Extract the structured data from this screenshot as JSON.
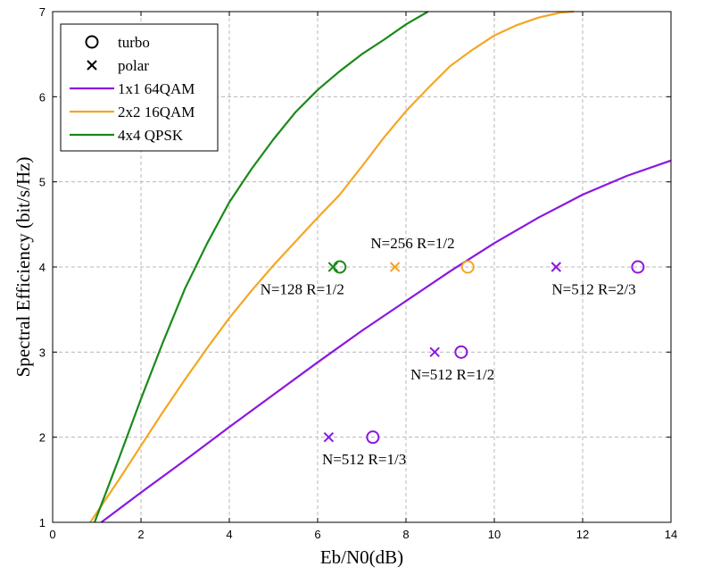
{
  "chart_data": {
    "type": "line",
    "title": "",
    "xlabel": "Eb/N0(dB)",
    "ylabel": "Spectral Efficiency (bit/s/Hz)",
    "xlim": [
      0,
      14
    ],
    "ylim": [
      1,
      7
    ],
    "xticks": [
      0,
      2,
      4,
      6,
      8,
      10,
      12,
      14
    ],
    "yticks": [
      1,
      2,
      3,
      4,
      5,
      6,
      7
    ],
    "grid": true,
    "legend_position": "top-left",
    "legend": [
      {
        "label": "turbo",
        "marker": "circle",
        "color": "#000000"
      },
      {
        "label": "polar",
        "marker": "x",
        "color": "#000000"
      },
      {
        "label": "1x1 64QAM",
        "line": true,
        "color": "#8b17e0"
      },
      {
        "label": "2x2 16QAM",
        "line": true,
        "color": "#f5a623"
      },
      {
        "label": "4x4 QPSK",
        "line": true,
        "color": "#1a8a1a"
      }
    ],
    "series": [
      {
        "color": "#8b17e0",
        "x": [
          1.1,
          2,
          3,
          4,
          5,
          6,
          7,
          8,
          9,
          10,
          11,
          12,
          13,
          14
        ],
        "y": [
          1.0,
          1.35,
          1.73,
          2.12,
          2.5,
          2.88,
          3.25,
          3.6,
          3.95,
          4.28,
          4.58,
          4.85,
          5.07,
          5.25
        ]
      },
      {
        "color": "#f5a623",
        "x": [
          0.85,
          1.5,
          2,
          2.5,
          3,
          3.5,
          4,
          4.5,
          5,
          5.5,
          6,
          6.5,
          7,
          7.5,
          8,
          8.5,
          9,
          9.5,
          10,
          10.5,
          11,
          11.5,
          11.8
        ],
        "y": [
          1.0,
          1.5,
          1.9,
          2.3,
          2.68,
          3.05,
          3.4,
          3.72,
          4.02,
          4.3,
          4.58,
          4.85,
          5.18,
          5.52,
          5.83,
          6.1,
          6.36,
          6.55,
          6.72,
          6.84,
          6.93,
          6.99,
          7.0
        ]
      },
      {
        "color": "#1a8a1a",
        "x": [
          0.95,
          1.5,
          2,
          2.5,
          3,
          3.5,
          4,
          4.5,
          5,
          5.5,
          6,
          6.5,
          7,
          7.5,
          8,
          8.5
        ],
        "y": [
          1.0,
          1.75,
          2.45,
          3.12,
          3.75,
          4.28,
          4.76,
          5.15,
          5.5,
          5.82,
          6.08,
          6.3,
          6.5,
          6.67,
          6.85,
          7.0
        ]
      }
    ],
    "points": [
      {
        "marker": "x",
        "color": "#1a8a1a",
        "x": 6.35,
        "y": 4.0
      },
      {
        "marker": "circle",
        "color": "#1a8a1a",
        "x": 6.5,
        "y": 4.0
      },
      {
        "marker": "x",
        "color": "#f5a623",
        "x": 7.75,
        "y": 4.0
      },
      {
        "marker": "circle",
        "color": "#f5a623",
        "x": 9.4,
        "y": 4.0
      },
      {
        "marker": "x",
        "color": "#8b17e0",
        "x": 11.4,
        "y": 4.0
      },
      {
        "marker": "circle",
        "color": "#8b17e0",
        "x": 13.25,
        "y": 4.0
      },
      {
        "marker": "x",
        "color": "#8b17e0",
        "x": 8.65,
        "y": 3.0
      },
      {
        "marker": "circle",
        "color": "#8b17e0",
        "x": 9.25,
        "y": 3.0
      },
      {
        "marker": "x",
        "color": "#8b17e0",
        "x": 6.25,
        "y": 2.0
      },
      {
        "marker": "circle",
        "color": "#8b17e0",
        "x": 7.25,
        "y": 2.0
      }
    ],
    "annotations": [
      {
        "text": "N=128 R=1/2",
        "x": 4.7,
        "y": 3.68
      },
      {
        "text": "N=256 R=1/2",
        "x": 7.2,
        "y": 4.22
      },
      {
        "text": "N=512 R=2/3",
        "x": 11.3,
        "y": 3.68
      },
      {
        "text": "N=512 R=1/2",
        "x": 8.1,
        "y": 2.68
      },
      {
        "text": "N=512 R=1/3",
        "x": 6.1,
        "y": 1.68
      }
    ]
  }
}
